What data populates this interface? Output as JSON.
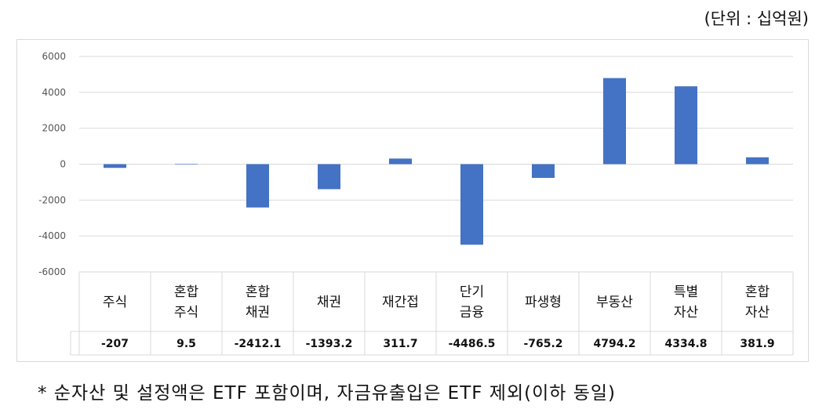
{
  "unit_label": "(단위 : 십억원)",
  "footnote": "* 순자산 및 설정액은 ETF 포함이며, 자금유출입은 ETF 제외(이하 동일)",
  "colors": {
    "bar": "#4472c4",
    "grid": "#d9d9d9"
  },
  "chart_data": {
    "type": "bar",
    "categories": [
      [
        "주식"
      ],
      [
        "혼합",
        "주식"
      ],
      [
        "혼합",
        "채권"
      ],
      [
        "채권"
      ],
      [
        "재간접"
      ],
      [
        "단기",
        "금융"
      ],
      [
        "파생형"
      ],
      [
        "부동산"
      ],
      [
        "특별",
        "자산"
      ],
      [
        "혼합",
        "자산"
      ]
    ],
    "values": [
      -207,
      9.5,
      -2412.1,
      -1393.2,
      311.7,
      -4486.5,
      -765.2,
      4794.2,
      4334.8,
      381.9
    ],
    "value_labels": [
      "-207",
      "9.5",
      "-2412.1",
      "-1393.2",
      "311.7",
      "-4486.5",
      "-765.2",
      "4794.2",
      "4334.8",
      "381.9"
    ],
    "y_ticks": [
      "6000",
      "4000",
      "2000",
      "0",
      "-2000",
      "-4000",
      "-6000"
    ],
    "ylim": [
      -6000,
      6000
    ],
    "grid": true,
    "data_table": true
  }
}
